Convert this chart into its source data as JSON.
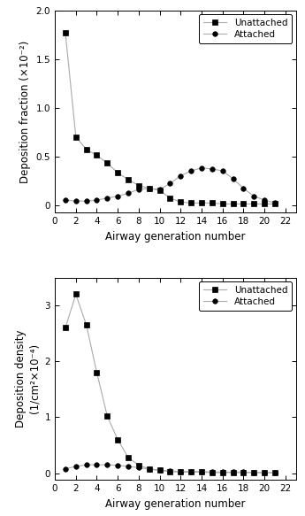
{
  "top": {
    "ylabel": "Deposition fraction (×10⁻²)",
    "xlabel": "Airway generation number",
    "ylim": [
      -0.08,
      2.0
    ],
    "yticks": [
      0.0,
      0.5,
      1.0,
      1.5,
      2.0
    ],
    "yticklabels": [
      "0",
      "0.5",
      "1.0",
      "1.5",
      "2.0"
    ],
    "xticks": [
      0,
      2,
      4,
      6,
      8,
      10,
      12,
      14,
      16,
      18,
      20,
      22
    ],
    "xlim": [
      0,
      23
    ],
    "unattached_x": [
      1,
      2,
      3,
      4,
      5,
      6,
      7,
      8,
      9,
      10,
      11,
      12,
      13,
      14,
      15,
      16,
      17,
      18,
      19,
      20,
      21
    ],
    "unattached_y": [
      1.77,
      0.7,
      0.57,
      0.51,
      0.43,
      0.33,
      0.26,
      0.2,
      0.17,
      0.15,
      0.07,
      0.03,
      0.02,
      0.02,
      0.02,
      0.01,
      0.01,
      0.01,
      0.01,
      0.01,
      0.01
    ],
    "attached_x": [
      1,
      2,
      3,
      4,
      5,
      6,
      7,
      8,
      9,
      10,
      11,
      12,
      13,
      14,
      15,
      16,
      17,
      18,
      19,
      20,
      21
    ],
    "attached_y": [
      0.05,
      0.04,
      0.04,
      0.05,
      0.07,
      0.09,
      0.12,
      0.16,
      0.17,
      0.16,
      0.22,
      0.3,
      0.35,
      0.38,
      0.37,
      0.35,
      0.27,
      0.17,
      0.09,
      0.05,
      0.02
    ]
  },
  "bottom": {
    "ylabel": "Deposition density\n(1/cm²×10⁻⁴)",
    "xlabel": "Airway generation number",
    "ylim": [
      -0.12,
      3.5
    ],
    "yticks": [
      0,
      1,
      2,
      3
    ],
    "yticklabels": [
      "0",
      "1",
      "2",
      "3"
    ],
    "xticks": [
      0,
      2,
      4,
      6,
      8,
      10,
      12,
      14,
      16,
      18,
      20,
      22
    ],
    "xlim": [
      0,
      23
    ],
    "unattached_x": [
      1,
      2,
      3,
      4,
      5,
      6,
      7,
      8,
      9,
      10,
      11,
      12,
      13,
      14,
      15,
      16,
      17,
      18,
      19,
      20,
      21
    ],
    "unattached_y": [
      2.6,
      3.2,
      2.65,
      1.8,
      1.02,
      0.6,
      0.28,
      0.14,
      0.08,
      0.05,
      0.03,
      0.02,
      0.02,
      0.02,
      0.01,
      0.01,
      0.01,
      0.01,
      0.01,
      0.01,
      0.005
    ],
    "attached_x": [
      1,
      2,
      3,
      4,
      5,
      6,
      7,
      8,
      9,
      10,
      11,
      12,
      13,
      14,
      15,
      16,
      17,
      18,
      19,
      20,
      21
    ],
    "attached_y": [
      0.08,
      0.12,
      0.15,
      0.15,
      0.15,
      0.14,
      0.12,
      0.1,
      0.07,
      0.05,
      0.04,
      0.03,
      0.03,
      0.03,
      0.02,
      0.02,
      0.02,
      0.02,
      0.01,
      0.01,
      0.005
    ]
  },
  "line_color": "#aaaaaa",
  "marker_color": "#000000",
  "marker_size": 4,
  "linewidth": 0.8,
  "legend_fontsize": 7.5,
  "tick_fontsize": 7.5,
  "label_fontsize": 8.5
}
